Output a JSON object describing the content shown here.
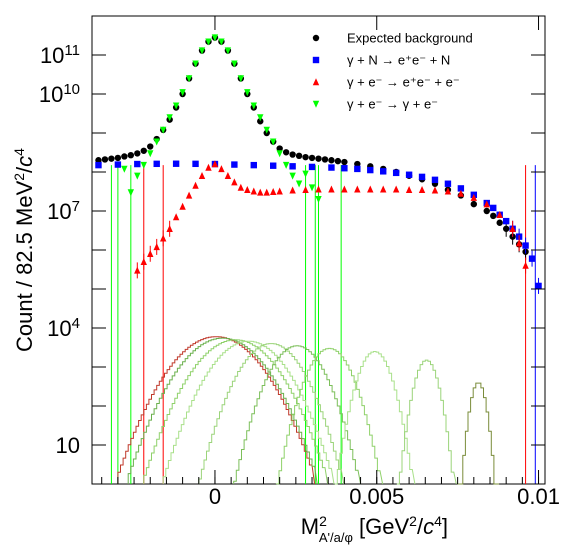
{
  "chart_data": {
    "type": "scatter",
    "title": "",
    "xlabel": {
      "base": "M",
      "sup": "2",
      "sub": "A'/a/φ",
      "rest": " [GeV",
      "sup2": "2",
      "slash": "/",
      "italic": "c",
      "sup3": "4",
      "end": "]"
    },
    "ylabel": {
      "pre": "Count / 82.5 MeV",
      "sup": "2",
      "slash": "/",
      "italic": "c",
      "sup2": "4"
    },
    "xlim": [
      -0.0038,
      0.0102
    ],
    "ylim": [
      1,
      1000000000000.0
    ],
    "yscale": "log",
    "x_ticks": [
      {
        "value": 0,
        "label": "0"
      },
      {
        "value": 0.005,
        "label": "0.005"
      },
      {
        "value": 0.01,
        "label": "0.01"
      }
    ],
    "y_ticks": [
      {
        "value": 10,
        "base": "10",
        "exp": ""
      },
      {
        "value": 10000,
        "base": "10",
        "exp": "4"
      },
      {
        "value": 10000000,
        "base": "10",
        "exp": "7"
      },
      {
        "value": 10000000000,
        "base": "10",
        "exp": "10"
      },
      {
        "value": 100000000000,
        "base": "10",
        "exp": "11"
      }
    ],
    "legend": {
      "position": "top-right",
      "entries": [
        {
          "label": "Expected background",
          "color": "#000000",
          "marker": "circle"
        },
        {
          "label": "γ + N → e⁺e⁻ + N",
          "color": "#0000ff",
          "marker": "square"
        },
        {
          "label": "γ + e⁻ → e⁺e⁻ + e⁻",
          "color": "#ff0000",
          "marker": "triangle-up"
        },
        {
          "label": "γ + e⁻ → γ + e⁻",
          "color": "#00ff00",
          "marker": "triangle-down"
        }
      ]
    },
    "series": [
      {
        "name": "Expected background",
        "color": "#000000",
        "x": [
          -0.0036,
          -0.0034,
          -0.0032,
          -0.003,
          -0.0028,
          -0.0026,
          -0.0024,
          -0.0022,
          -0.002,
          -0.0018,
          -0.0016,
          -0.0014,
          -0.0012,
          -0.001,
          -0.0008,
          -0.0006,
          -0.0004,
          -0.0002,
          0,
          0.0002,
          0.0004,
          0.0006,
          0.0008,
          0.001,
          0.0012,
          0.0014,
          0.0016,
          0.0018,
          0.002,
          0.0022,
          0.0024,
          0.0026,
          0.0028,
          0.003,
          0.0032,
          0.0034,
          0.0036,
          0.0038,
          0.004,
          0.0044,
          0.0048,
          0.0052,
          0.0056,
          0.006,
          0.0064,
          0.0068,
          0.0072,
          0.0076,
          0.008,
          0.0084,
          0.0086,
          0.0088,
          0.009,
          0.0092,
          0.0094,
          0.0096
        ],
        "y": [
          200000000.0,
          210000000.0,
          220000000.0,
          230000000.0,
          250000000.0,
          270000000.0,
          300000000.0,
          350000000.0,
          450000000.0,
          700000000.0,
          1200000000.0,
          2200000000.0,
          4500000000.0,
          10000000000.0,
          25000000000.0,
          60000000000.0,
          130000000000.0,
          220000000000.0,
          280000000000.0,
          220000000000.0,
          130000000000.0,
          60000000000.0,
          25000000000.0,
          10000000000.0,
          4500000000.0,
          2000000000.0,
          1000000000.0,
          600000000.0,
          400000000.0,
          320000000.0,
          280000000.0,
          260000000.0,
          240000000.0,
          230000000.0,
          220000000.0,
          210000000.0,
          200000000.0,
          190000000.0,
          180000000.0,
          160000000.0,
          140000000.0,
          120000000.0,
          100000000.0,
          80000000.0,
          65000000.0,
          50000000.0,
          35000000.0,
          25000000.0,
          15000000.0,
          10000000.0,
          7500000.0,
          5000000.0,
          3500000.0,
          2200000.0,
          1400000.0,
          900000.0
        ]
      },
      {
        "name": "γ + N → e⁺e⁻ + N",
        "color": "#0000ff",
        "x": [
          -0.0036,
          -0.003,
          -0.0024,
          -0.0018,
          -0.0012,
          -0.0006,
          0,
          0.0006,
          0.0012,
          0.0018,
          0.0024,
          0.003,
          0.0036,
          0.004,
          0.0044,
          0.0048,
          0.0052,
          0.0056,
          0.006,
          0.0064,
          0.0068,
          0.0072,
          0.0076,
          0.008,
          0.0084,
          0.0086,
          0.0088,
          0.009,
          0.0092,
          0.0094,
          0.0096,
          0.0098,
          0.01
        ],
        "y": [
          150000000.0,
          155000000.0,
          160000000.0,
          162000000.0,
          163000000.0,
          162000000.0,
          160000000.0,
          155000000.0,
          150000000.0,
          145000000.0,
          140000000.0,
          135000000.0,
          130000000.0,
          125000000.0,
          120000000.0,
          112000000.0,
          104000000.0,
          95000000.0,
          85000000.0,
          75000000.0,
          63000000.0,
          50000000.0,
          38000000.0,
          26000000.0,
          16000000.0,
          12000000.0,
          8000000.0,
          5500000.0,
          3500000.0,
          2200000.0,
          1300000.0,
          600000.0,
          120000.0
        ]
      },
      {
        "name": "γ + e⁻ → e⁺e⁻ + e⁻",
        "color": "#ff0000",
        "x": [
          -0.0024,
          -0.0022,
          -0.002,
          -0.0018,
          -0.0016,
          -0.0014,
          -0.0012,
          -0.001,
          -0.0008,
          -0.0006,
          -0.0004,
          -0.0002,
          0,
          0.0002,
          0.0004,
          0.0006,
          0.0008,
          0.001,
          0.0012,
          0.0014,
          0.0016,
          0.0018,
          0.002,
          0.0024,
          0.0028,
          0.0032,
          0.0036,
          0.004,
          0.0044,
          0.0048,
          0.0052,
          0.0056,
          0.006,
          0.0064,
          0.0068,
          0.0072,
          0.0076,
          0.008,
          0.0084,
          0.0088,
          0.0092,
          0.0094,
          0.0096
        ],
        "y": [
          300000.0,
          500000.0,
          800000.0,
          1200000.0,
          2000000.0,
          3500000.0,
          7000000.0,
          13000000.0,
          25000000.0,
          45000000.0,
          80000000.0,
          130000000.0,
          160000000.0,
          120000000.0,
          80000000.0,
          55000000.0,
          40000000.0,
          35000000.0,
          32000000.0,
          30000000.0,
          30000000.0,
          31000000.0,
          32000000.0,
          34000000.0,
          35000000.0,
          36000000.0,
          36000000.0,
          36000000.0,
          36000000.0,
          36000000.0,
          36000000.0,
          36000000.0,
          35000000.0,
          35000000.0,
          34000000.0,
          32000000.0,
          28000000.0,
          22000000.0,
          15000000.0,
          8000000.0,
          3500000.0,
          1500000.0,
          400000.0
        ]
      },
      {
        "name": "γ + e⁻ → γ + e⁻",
        "color": "#00ff00",
        "x": [
          -0.0028,
          -0.0026,
          -0.0024,
          -0.0022,
          -0.002,
          -0.0018,
          -0.0016,
          -0.0014,
          -0.0012,
          -0.001,
          -0.0008,
          -0.0006,
          -0.0004,
          -0.0002,
          0,
          0.0002,
          0.0004,
          0.0006,
          0.0008,
          0.001,
          0.0012,
          0.0014,
          0.0016,
          0.0018,
          0.002,
          0.0022,
          0.0024,
          0.0026,
          0.0028,
          0.003,
          0.0032
        ],
        "y": [
          120000000.0,
          30000000.0,
          80000000.0,
          150000000.0,
          300000000.0,
          600000000.0,
          1200000000.0,
          2500000000.0,
          5000000000.0,
          11000000000.0,
          25000000000.0,
          60000000000.0,
          130000000000.0,
          220000000000.0,
          280000000000.0,
          220000000000.0,
          130000000000.0,
          60000000000.0,
          25000000000.0,
          11000000000.0,
          5000000000.0,
          2500000000.0,
          1200000000.0,
          600000000.0,
          300000000.0,
          150000000.0,
          80000000.0,
          50000000.0,
          90000000.0,
          40000000.0,
          20000000.0
        ]
      }
    ],
    "signal_histograms": [
      {
        "mean": 0.0,
        "peak": 6000,
        "sigma": 0.00075,
        "color": "#c0392b"
      },
      {
        "mean": 0.0002,
        "peak": 5500,
        "sigma": 0.00072,
        "color": "#6ab04c"
      },
      {
        "mean": 0.0006,
        "peak": 5000,
        "sigma": 0.0007,
        "color": "#8fd16a"
      },
      {
        "mean": 0.001,
        "peak": 4600,
        "sigma": 0.00065,
        "color": "#a9e08a"
      },
      {
        "mean": 0.0017,
        "peak": 4000,
        "sigma": 0.00055,
        "color": "#9bd47a"
      },
      {
        "mean": 0.0025,
        "peak": 3500,
        "sigma": 0.00048,
        "color": "#7cbf5a"
      },
      {
        "mean": 0.0035,
        "peak": 3000,
        "sigma": 0.0004,
        "color": "#8fd16a"
      },
      {
        "mean": 0.0049,
        "peak": 2500,
        "sigma": 0.0003,
        "color": "#a9e08a"
      },
      {
        "mean": 0.0065,
        "peak": 1500,
        "sigma": 0.00022,
        "color": "#9bd47a"
      },
      {
        "mean": 0.0081,
        "peak": 400,
        "sigma": 0.00015,
        "color": "#7a8c3a"
      }
    ],
    "spikes": [
      {
        "x": -0.0032,
        "color": "#00ff00"
      },
      {
        "x": -0.003,
        "color": "#00ff00"
      },
      {
        "x": -0.0026,
        "color": "#00ff00"
      },
      {
        "x": -0.0022,
        "color": "#ff0000"
      },
      {
        "x": -0.0016,
        "color": "#ff0000"
      },
      {
        "x": 0.0028,
        "color": "#00ff00"
      },
      {
        "x": 0.0031,
        "color": "#00ff00"
      },
      {
        "x": 0.0032,
        "color": "#00ff00"
      },
      {
        "x": 0.0039,
        "color": "#00ff00"
      },
      {
        "x": 0.0096,
        "color": "#ff0000"
      },
      {
        "x": 0.0099,
        "color": "#0000ff"
      }
    ]
  }
}
